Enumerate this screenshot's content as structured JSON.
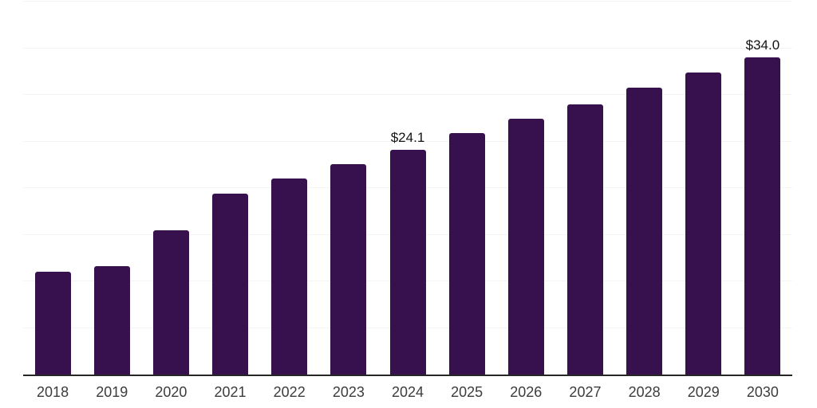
{
  "chart_data": {
    "type": "bar",
    "title": "",
    "xlabel": "",
    "ylabel": "",
    "categories": [
      "2018",
      "2019",
      "2020",
      "2021",
      "2022",
      "2023",
      "2024",
      "2025",
      "2026",
      "2027",
      "2028",
      "2029",
      "2030"
    ],
    "values": [
      11.0,
      11.6,
      15.5,
      19.4,
      21.0,
      22.6,
      24.1,
      25.9,
      27.4,
      29.0,
      30.8,
      32.4,
      34.0
    ],
    "annotations": [
      {
        "category": "2024",
        "index": 6,
        "text": "$24.1"
      },
      {
        "category": "2030",
        "index": 12,
        "text": "$34.0"
      }
    ],
    "ylim": [
      0,
      40
    ],
    "gridline_step": 5,
    "grid": "horizontal-only",
    "legend": "none",
    "y_axis_tick_labels": "none",
    "colors": {
      "bar": "#36114D",
      "gridline": "#f4f4f4",
      "axis_line": "#262626",
      "axis_label_text": "#3c3c3c",
      "data_label_text": "#141414",
      "background": "#ffffff"
    }
  }
}
